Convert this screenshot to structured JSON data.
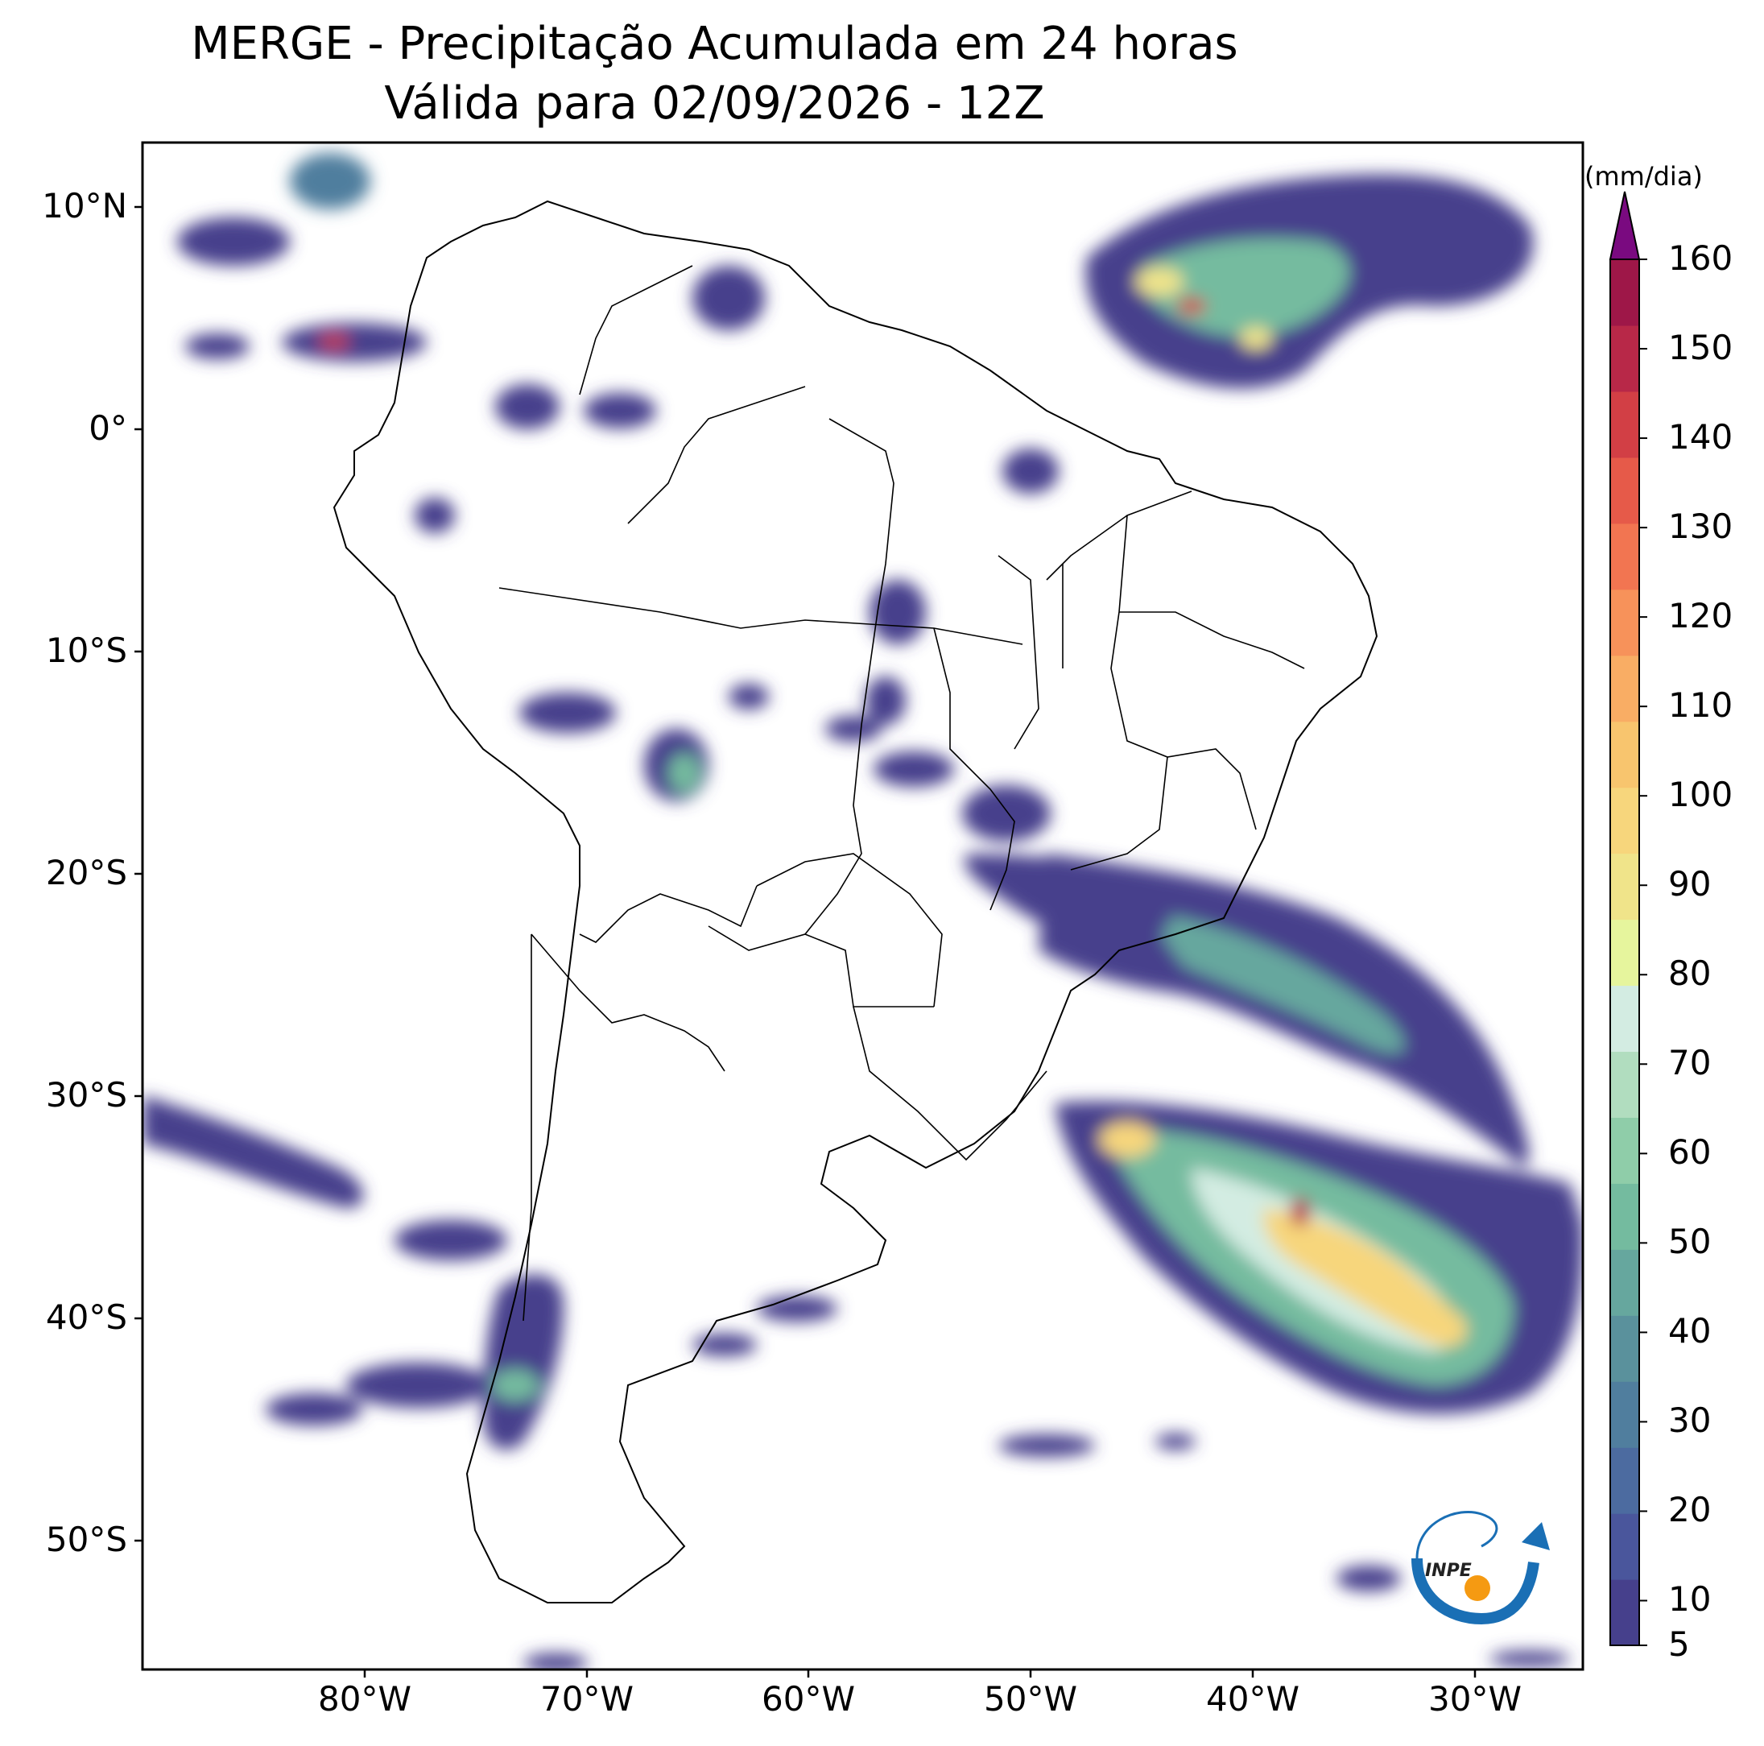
{
  "title": {
    "line1": "MERGE - Precipitação Acumulada em 24 horas",
    "line2": "Válida para 02/09/2026 - 12Z"
  },
  "axes": {
    "lat_labels": [
      "10°N",
      "0°",
      "10°S",
      "20°S",
      "30°S",
      "40°S",
      "50°S"
    ],
    "lon_labels": [
      "80°W",
      "70°W",
      "60°W",
      "50°W",
      "40°W",
      "30°W"
    ],
    "extent": {
      "lon_min": -90,
      "lon_max": -25,
      "lat_min": -56,
      "lat_max": 13
    }
  },
  "colorbar": {
    "unit": "(mm/dia)",
    "ticks": [
      "5",
      "10",
      "20",
      "30",
      "40",
      "50",
      "60",
      "70",
      "80",
      "90",
      "100",
      "110",
      "120",
      "130",
      "140",
      "150",
      "160"
    ],
    "colors": [
      "#46408c",
      "#4a569c",
      "#4c6ba0",
      "#507e9e",
      "#5a919c",
      "#66a79e",
      "#74bb9f",
      "#8fcda9",
      "#b1ddbf",
      "#d3ece2",
      "#e6f59d",
      "#f0e48a",
      "#f7d67c",
      "#f8c56e",
      "#f9ad64",
      "#f7925a",
      "#f27551",
      "#e65a49",
      "#d23f45",
      "#b82848",
      "#9e1748"
    ],
    "extend_color": "#7a0a80"
  },
  "logo": {
    "text": "INPE"
  }
}
